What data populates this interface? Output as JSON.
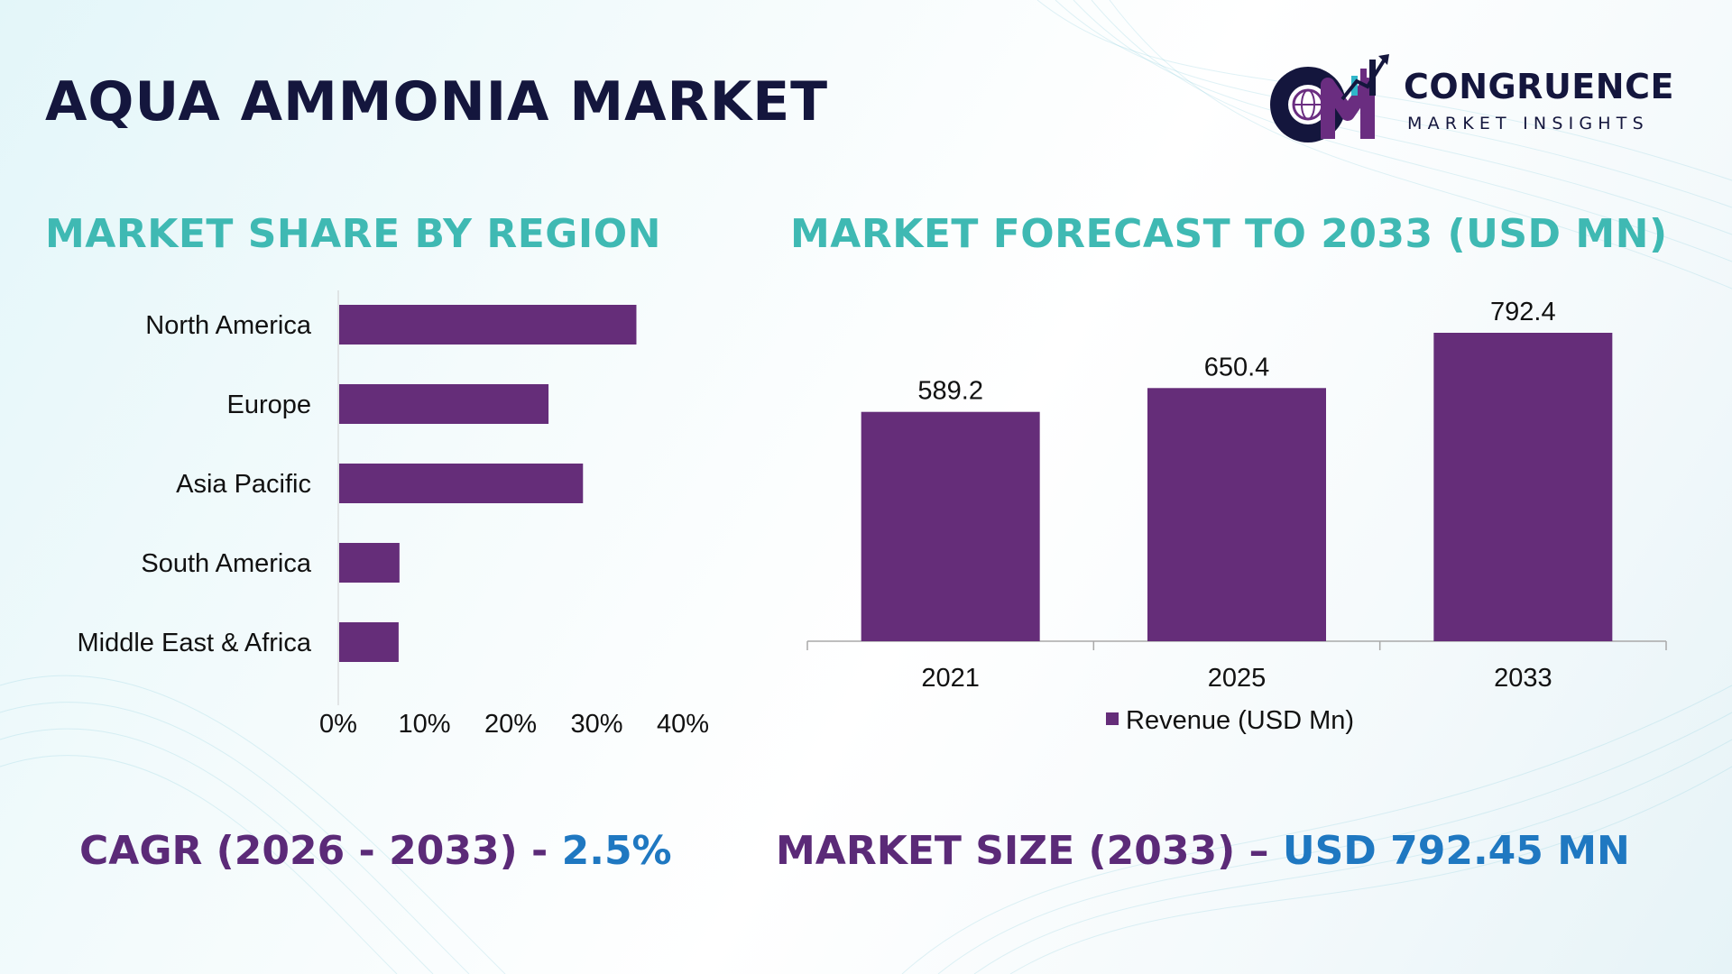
{
  "page": {
    "title": "AQUA AMMONIA MARKET"
  },
  "colors": {
    "title": "#14163d",
    "section_title": "#3fb9b3",
    "bar": "#652d79",
    "stat_label": "#5b2a78",
    "stat_value": "#1f78c1",
    "logo_purple": "#6a2d80",
    "logo_navy": "#14163d",
    "logo_teal": "#2fb6c9"
  },
  "logo": {
    "name": "CONGRUENCE",
    "tagline": "MARKET INSIGHTS",
    "icon": "globe-chart-logo-icon"
  },
  "sections": {
    "region_title": "MARKET SHARE BY REGION",
    "forecast_title": "MARKET FORECAST TO 2033 (USD MN)"
  },
  "chart_data": [
    {
      "type": "bar",
      "orientation": "horizontal",
      "title": "MARKET SHARE BY REGION",
      "categories": [
        "North America",
        "Europe",
        "Asia Pacific",
        "South America",
        "Middle East & Africa"
      ],
      "values": [
        34.5,
        24.3,
        28.3,
        7.0,
        6.9
      ],
      "unit": "%",
      "xlim": [
        0,
        40
      ],
      "xticks": [
        "0%",
        "10%",
        "20%",
        "30%",
        "40%"
      ],
      "grid": false,
      "legend": "none"
    },
    {
      "type": "bar",
      "orientation": "vertical",
      "title": "MARKET FORECAST TO 2033 (USD MN)",
      "categories": [
        "2021",
        "2025",
        "2033"
      ],
      "series": [
        {
          "name": "Revenue (USD Mn)",
          "values": [
            589.2,
            650.4,
            792.4
          ]
        }
      ],
      "data_labels": [
        "589.2",
        "650.4",
        "792.4"
      ],
      "ylim": [
        0,
        792.4
      ],
      "grid": false,
      "legend": "bottom"
    }
  ],
  "stats": {
    "cagr_label": "CAGR (2026 - 2033) - ",
    "cagr_value": "2.5%",
    "size_label": "MARKET SIZE (2033) – ",
    "size_value": "USD 792.45 MN"
  }
}
